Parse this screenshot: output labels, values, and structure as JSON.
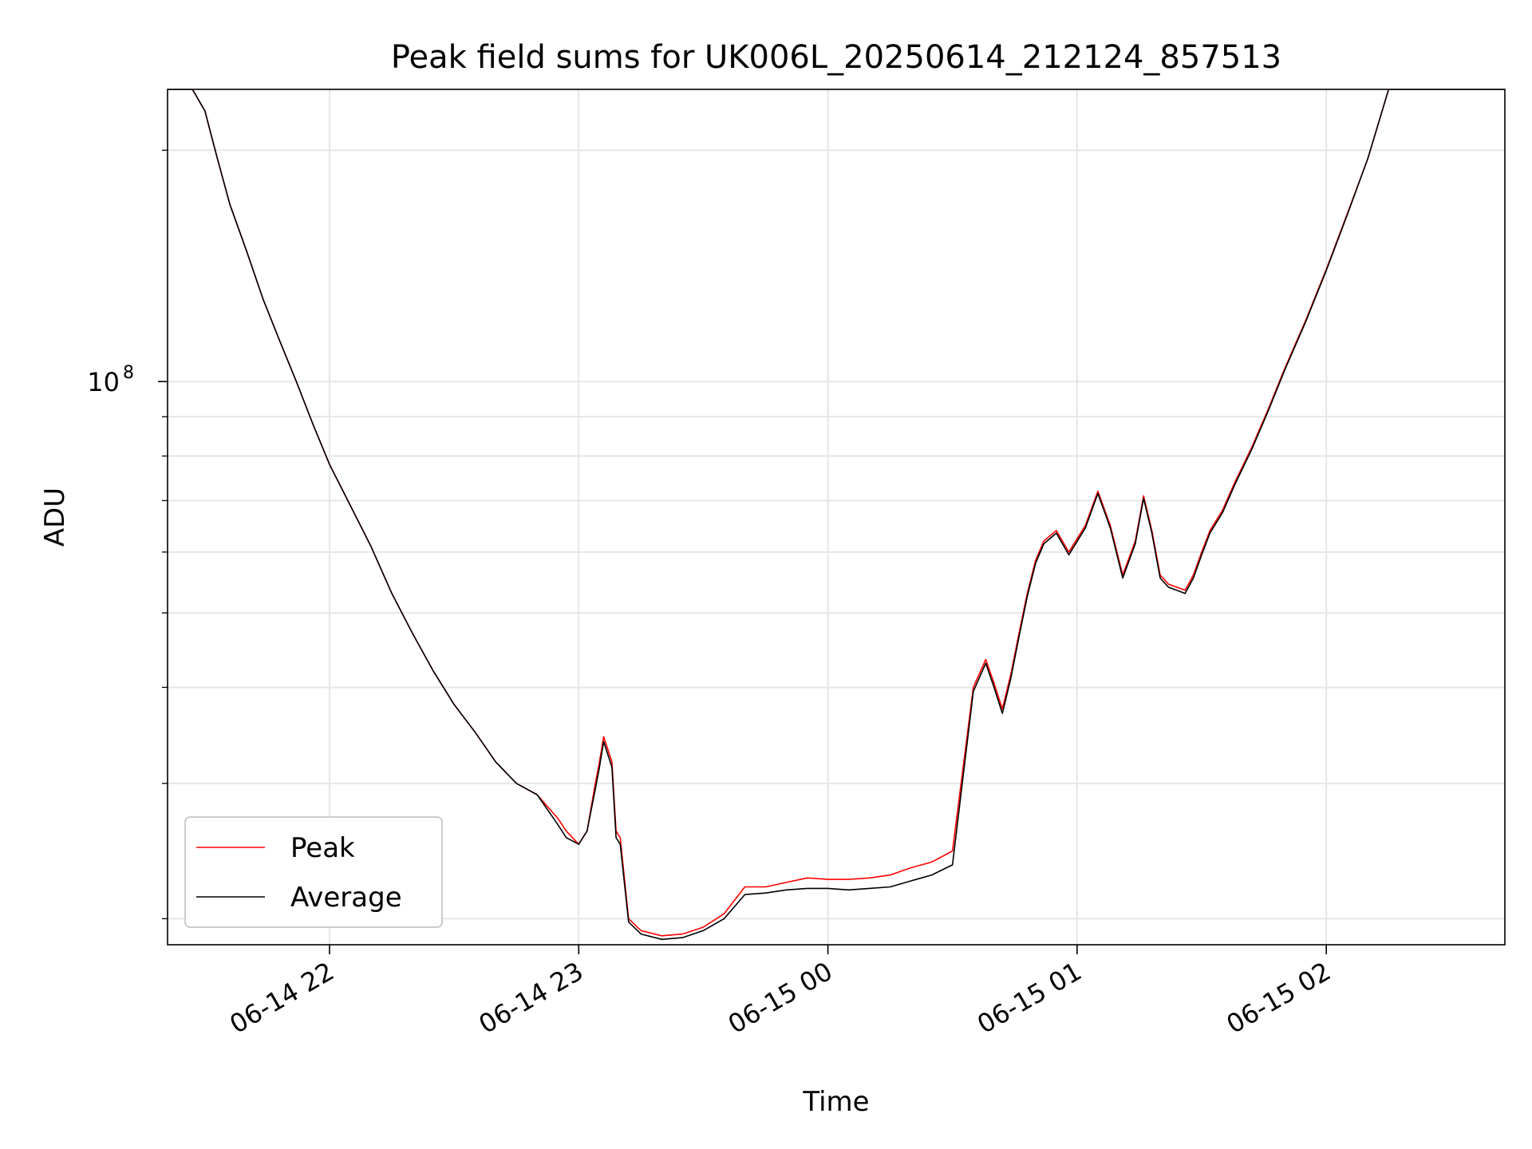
{
  "chart_data": {
    "type": "line",
    "title": "Peak field sums for UK006L_20250614_212124_857513",
    "xlabel": "Time",
    "ylabel": "ADU",
    "yscale": "log",
    "ylim": [
      18500000,
      240000000
    ],
    "xlim": [
      "06-14 21:21",
      "06-15 02:43"
    ],
    "grid": true,
    "legend_position": "lower-left",
    "x_ticks": [
      {
        "value": "06-14 22:00",
        "label": "06-14 22"
      },
      {
        "value": "06-14 23:00",
        "label": "06-14 23"
      },
      {
        "value": "06-15 00:00",
        "label": "06-15 00"
      },
      {
        "value": "06-15 01:00",
        "label": "06-15 01"
      },
      {
        "value": "06-15 02:00",
        "label": "06-15 02"
      }
    ],
    "y_major_ticks": [
      {
        "value": 100000000,
        "label": "10",
        "exponent": "8"
      }
    ],
    "y_minor_ticks": [
      20000000,
      30000000,
      40000000,
      50000000,
      60000000,
      70000000,
      80000000,
      90000000,
      200000000
    ],
    "x": [
      "06-14 21:21",
      "06-14 21:24",
      "06-14 21:27",
      "06-14 21:30",
      "06-14 21:33",
      "06-14 21:36",
      "06-14 21:40",
      "06-14 21:44",
      "06-14 21:48",
      "06-14 21:52",
      "06-14 21:56",
      "06-14 22:00",
      "06-14 22:05",
      "06-14 22:10",
      "06-14 22:15",
      "06-14 22:20",
      "06-14 22:25",
      "06-14 22:30",
      "06-14 22:35",
      "06-14 22:40",
      "06-14 22:45",
      "06-14 22:50",
      "06-14 22:55",
      "06-14 22:57",
      "06-14 23:00",
      "06-14 23:02",
      "06-14 23:04",
      "06-14 23:05",
      "06-14 23:06",
      "06-14 23:08",
      "06-14 23:09",
      "06-14 23:10",
      "06-14 23:12",
      "06-14 23:15",
      "06-14 23:20",
      "06-14 23:25",
      "06-14 23:30",
      "06-14 23:35",
      "06-14 23:40",
      "06-14 23:45",
      "06-14 23:50",
      "06-14 23:55",
      "06-15 00:00",
      "06-15 00:05",
      "06-15 00:10",
      "06-15 00:15",
      "06-15 00:20",
      "06-15 00:25",
      "06-15 00:30",
      "06-15 00:35",
      "06-15 00:38",
      "06-15 00:40",
      "06-15 00:42",
      "06-15 00:44",
      "06-15 00:46",
      "06-15 00:48",
      "06-15 00:50",
      "06-15 00:52",
      "06-15 00:55",
      "06-15 00:58",
      "06-15 01:02",
      "06-15 01:05",
      "06-15 01:08",
      "06-15 01:11",
      "06-15 01:14",
      "06-15 01:16",
      "06-15 01:18",
      "06-15 01:20",
      "06-15 01:22",
      "06-15 01:24",
      "06-15 01:26",
      "06-15 01:28",
      "06-15 01:30",
      "06-15 01:32",
      "06-15 01:35",
      "06-15 01:38",
      "06-15 01:42",
      "06-15 01:46",
      "06-15 01:50",
      "06-15 01:55",
      "06-15 02:00",
      "06-15 02:05",
      "06-15 02:10",
      "06-15 02:15",
      "06-15 02:20",
      "06-15 02:25",
      "06-15 02:30",
      "06-15 02:32",
      "06-15 02:34",
      "06-15 02:43"
    ],
    "series": [
      {
        "name": "Peak",
        "color": "#ff0000",
        "values": [
          240000000,
          240000000,
          240000000,
          225000000,
          195000000,
          170000000,
          148000000,
          128000000,
          113000000,
          100000000,
          88000000,
          78000000,
          69000000,
          61000000,
          53000000,
          47000000,
          42000000,
          38000000,
          35000000,
          32000000,
          30000000,
          29000000,
          27000000,
          26000000,
          25000000,
          26000000,
          30000000,
          32000000,
          34500000,
          32000000,
          26000000,
          25500000,
          20000000,
          19300000,
          19000000,
          19100000,
          19500000,
          20300000,
          22000000,
          22000000,
          22300000,
          22600000,
          22500000,
          22500000,
          22600000,
          22800000,
          23300000,
          23700000,
          24500000,
          40000000,
          43500000,
          40500000,
          37500000,
          41500000,
          47000000,
          53000000,
          58500000,
          62000000,
          64000000,
          60000000,
          65000000,
          72000000,
          65000000,
          56000000,
          62000000,
          71000000,
          64000000,
          56000000,
          54500000,
          54000000,
          53500000,
          56000000,
          60000000,
          64000000,
          68000000,
          74000000,
          82000000,
          92000000,
          104000000,
          120000000,
          140000000,
          165000000,
          195000000,
          240000000,
          240000000,
          240000000,
          240000000,
          240000000,
          240000000,
          240000000
        ]
      },
      {
        "name": "Average",
        "color": "#000000",
        "values": [
          240000000,
          240000000,
          240000000,
          225000000,
          195000000,
          170000000,
          148000000,
          128000000,
          113000000,
          100000000,
          88000000,
          78000000,
          69000000,
          61000000,
          53000000,
          47000000,
          42000000,
          38000000,
          35000000,
          32000000,
          30000000,
          29000000,
          26500000,
          25500000,
          25000000,
          26000000,
          29500000,
          31500000,
          34000000,
          31500000,
          25500000,
          25000000,
          19800000,
          19100000,
          18800000,
          18900000,
          19300000,
          20000000,
          21500000,
          21600000,
          21800000,
          21900000,
          21900000,
          21800000,
          21900000,
          22000000,
          22400000,
          22800000,
          23500000,
          39500000,
          43000000,
          40000000,
          37000000,
          41000000,
          46500000,
          52500000,
          58000000,
          61500000,
          63500000,
          59500000,
          64500000,
          71500000,
          64500000,
          55500000,
          61500000,
          70500000,
          63500000,
          55500000,
          54000000,
          53500000,
          53000000,
          55500000,
          59500000,
          63500000,
          67500000,
          73500000,
          81500000,
          91500000,
          103500000,
          119500000,
          139500000,
          164500000,
          195000000,
          240000000,
          240000000,
          240000000,
          240000000,
          240000000,
          240000000,
          240000000
        ]
      }
    ]
  }
}
